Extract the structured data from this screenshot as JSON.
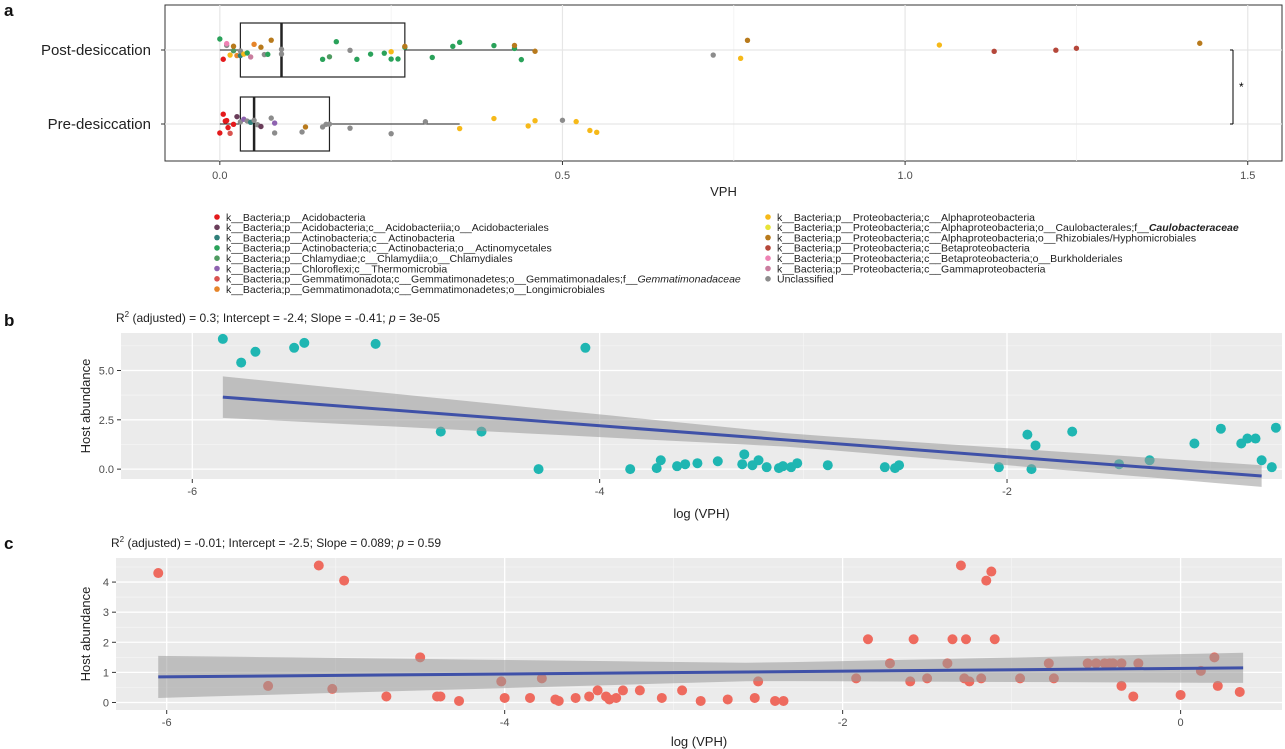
{
  "panel_labels": [
    "a",
    "b",
    "c"
  ],
  "chart_data": [
    {
      "type": "scatter",
      "subtype": "horizontal-boxplot-jitter",
      "panel": "a",
      "xlabel": "VPH",
      "xlim": [
        -0.08,
        1.55
      ],
      "xticks": [
        0.0,
        0.5,
        1.0,
        1.5
      ],
      "xtick_labels": [
        "0.0",
        "0.5",
        "1.0",
        "1.5"
      ],
      "grid": true,
      "legend_position": "bottom",
      "significance_label": "*",
      "groups": [
        {
          "name": "Post-desiccation",
          "box": {
            "min": 0.0,
            "q1": 0.03,
            "median": 0.09,
            "q3": 0.27,
            "max": 0.46
          }
        },
        {
          "name": "Pre-desiccation",
          "box": {
            "min": 0.0,
            "q1": 0.03,
            "median": 0.05,
            "q3": 0.16,
            "max": 0.35
          }
        }
      ],
      "legend": [
        {
          "label": "k__Bacteria;p__Acidobacteria",
          "color": "#e41a1c"
        },
        {
          "label": "k__Bacteria;p__Acidobacteria;c__Acidobacteriia;o__Acidobacteriales",
          "color": "#6a3d5a"
        },
        {
          "label": "k__Bacteria;p__Actinobacteria;c__Actinobacteria",
          "color": "#2f7f7a"
        },
        {
          "label": "k__Bacteria;p__Actinobacteria;c__Actinobacteria;o__Actinomycetales",
          "color": "#2aa25a"
        },
        {
          "label": "k__Bacteria;p__Chlamydiae;c__Chlamydiia;o__Chlamydiales",
          "color": "#4e9a60"
        },
        {
          "label": "k__Bacteria;p__Chloroflexi;c__Thermomicrobia",
          "color": "#8e62b0"
        },
        {
          "label": "k__Bacteria;p__Gemmatimonadota;c__Gemmatimonadetes;o__Gemmatimonadales;f__Gemmatimonadaceae",
          "color": "#d9534f"
        },
        {
          "label": "k__Bacteria;p__Gemmatimonadota;c__Gemmatimonadetes;o__Longimicrobiales",
          "color": "#e6852a"
        },
        {
          "label": "k__Bacteria;p__Proteobacteria;c__Alphaproteobacteria",
          "color": "#f6b919"
        },
        {
          "label": "k__Bacteria;p__Proteobacteria;c__Alphaproteobacteria;o__Caulobacterales;f__Caulobacteraceae",
          "color": "#e8e337"
        },
        {
          "label": "k__Bacteria;p__Proteobacteria;c__Alphaproteobacteria;o__Rhizobiales/Hyphomicrobiales",
          "color": "#b87a1c"
        },
        {
          "label": "k__Bacteria;p__Proteobacteria;c__Betaproteobacteria",
          "color": "#b5473a"
        },
        {
          "label": "k__Bacteria;p__Proteobacteria;c__Betaproteobacteria;o__Burkholderiales",
          "color": "#ee82b4"
        },
        {
          "label": "k__Bacteria;p__Proteobacteria;c__Gammaproteobacteria",
          "color": "#c97d9e"
        },
        {
          "label": "Unclassified",
          "color": "#8c8c8c"
        }
      ],
      "points": [
        {
          "g": 0,
          "x": 0.0,
          "c": 3
        },
        {
          "g": 0,
          "x": 0.005,
          "c": 0
        },
        {
          "g": 0,
          "x": 0.01,
          "c": 14
        },
        {
          "g": 0,
          "x": 0.01,
          "c": 12
        },
        {
          "g": 0,
          "x": 0.015,
          "c": 8
        },
        {
          "g": 0,
          "x": 0.02,
          "c": 4
        },
        {
          "g": 0,
          "x": 0.02,
          "c": 10
        },
        {
          "g": 0,
          "x": 0.025,
          "c": 7
        },
        {
          "g": 0,
          "x": 0.03,
          "c": 2
        },
        {
          "g": 0,
          "x": 0.03,
          "c": 14
        },
        {
          "g": 0,
          "x": 0.035,
          "c": 8
        },
        {
          "g": 0,
          "x": 0.04,
          "c": 3
        },
        {
          "g": 0,
          "x": 0.045,
          "c": 13
        },
        {
          "g": 0,
          "x": 0.05,
          "c": 7
        },
        {
          "g": 0,
          "x": 0.06,
          "c": 10
        },
        {
          "g": 0,
          "x": 0.065,
          "c": 14
        },
        {
          "g": 0,
          "x": 0.07,
          "c": 3
        },
        {
          "g": 0,
          "x": 0.075,
          "c": 10
        },
        {
          "g": 0,
          "x": 0.09,
          "c": 14
        },
        {
          "g": 0,
          "x": 0.09,
          "c": 14
        },
        {
          "g": 0,
          "x": 0.15,
          "c": 3
        },
        {
          "g": 0,
          "x": 0.16,
          "c": 4
        },
        {
          "g": 0,
          "x": 0.17,
          "c": 3
        },
        {
          "g": 0,
          "x": 0.19,
          "c": 14
        },
        {
          "g": 0,
          "x": 0.2,
          "c": 3
        },
        {
          "g": 0,
          "x": 0.22,
          "c": 3
        },
        {
          "g": 0,
          "x": 0.24,
          "c": 3
        },
        {
          "g": 0,
          "x": 0.25,
          "c": 8
        },
        {
          "g": 0,
          "x": 0.25,
          "c": 3
        },
        {
          "g": 0,
          "x": 0.26,
          "c": 3
        },
        {
          "g": 0,
          "x": 0.27,
          "c": 3
        },
        {
          "g": 0,
          "x": 0.27,
          "c": 10
        },
        {
          "g": 0,
          "x": 0.31,
          "c": 3
        },
        {
          "g": 0,
          "x": 0.34,
          "c": 3
        },
        {
          "g": 0,
          "x": 0.35,
          "c": 3
        },
        {
          "g": 0,
          "x": 0.4,
          "c": 3
        },
        {
          "g": 0,
          "x": 0.43,
          "c": 3
        },
        {
          "g": 0,
          "x": 0.43,
          "c": 10
        },
        {
          "g": 0,
          "x": 0.44,
          "c": 3
        },
        {
          "g": 0,
          "x": 0.46,
          "c": 10
        },
        {
          "g": 0,
          "x": 0.72,
          "c": 14
        },
        {
          "g": 0,
          "x": 0.76,
          "c": 8
        },
        {
          "g": 0,
          "x": 0.77,
          "c": 10
        },
        {
          "g": 0,
          "x": 1.05,
          "c": 8
        },
        {
          "g": 0,
          "x": 1.13,
          "c": 11
        },
        {
          "g": 0,
          "x": 1.22,
          "c": 11
        },
        {
          "g": 0,
          "x": 1.25,
          "c": 11
        },
        {
          "g": 0,
          "x": 1.43,
          "c": 10
        },
        {
          "g": 1,
          "x": 0.0,
          "c": 0
        },
        {
          "g": 1,
          "x": 0.005,
          "c": 0
        },
        {
          "g": 1,
          "x": 0.008,
          "c": 0
        },
        {
          "g": 1,
          "x": 0.01,
          "c": 0
        },
        {
          "g": 1,
          "x": 0.012,
          "c": 0
        },
        {
          "g": 1,
          "x": 0.015,
          "c": 6
        },
        {
          "g": 1,
          "x": 0.02,
          "c": 0
        },
        {
          "g": 1,
          "x": 0.025,
          "c": 1
        },
        {
          "g": 1,
          "x": 0.03,
          "c": 14
        },
        {
          "g": 1,
          "x": 0.035,
          "c": 5
        },
        {
          "g": 1,
          "x": 0.04,
          "c": 14
        },
        {
          "g": 1,
          "x": 0.045,
          "c": 2
        },
        {
          "g": 1,
          "x": 0.05,
          "c": 14
        },
        {
          "g": 1,
          "x": 0.055,
          "c": 14
        },
        {
          "g": 1,
          "x": 0.06,
          "c": 1
        },
        {
          "g": 1,
          "x": 0.075,
          "c": 14
        },
        {
          "g": 1,
          "x": 0.08,
          "c": 14
        },
        {
          "g": 1,
          "x": 0.08,
          "c": 5
        },
        {
          "g": 1,
          "x": 0.12,
          "c": 14
        },
        {
          "g": 1,
          "x": 0.125,
          "c": 10
        },
        {
          "g": 1,
          "x": 0.15,
          "c": 14
        },
        {
          "g": 1,
          "x": 0.155,
          "c": 14
        },
        {
          "g": 1,
          "x": 0.16,
          "c": 14
        },
        {
          "g": 1,
          "x": 0.19,
          "c": 14
        },
        {
          "g": 1,
          "x": 0.25,
          "c": 14
        },
        {
          "g": 1,
          "x": 0.3,
          "c": 14
        },
        {
          "g": 1,
          "x": 0.35,
          "c": 8
        },
        {
          "g": 1,
          "x": 0.4,
          "c": 8
        },
        {
          "g": 1,
          "x": 0.45,
          "c": 8
        },
        {
          "g": 1,
          "x": 0.46,
          "c": 8
        },
        {
          "g": 1,
          "x": 0.5,
          "c": 14
        },
        {
          "g": 1,
          "x": 0.52,
          "c": 8
        },
        {
          "g": 1,
          "x": 0.54,
          "c": 8
        },
        {
          "g": 1,
          "x": 0.55,
          "c": 8
        }
      ]
    },
    {
      "type": "scatter",
      "panel": "b",
      "title": "R² (adjusted) = 0.3; Intercept = -2.4; Slope = -0.41; p = 3e-05",
      "title_parts": [
        "R",
        "2",
        " (adjusted) = 0.3; Intercept = -2.4; Slope = -0.41; ",
        "p",
        " = 3e-05"
      ],
      "xlabel": "log (VPH)",
      "ylabel": "Host abundance",
      "xlim": [
        -6.35,
        -0.65
      ],
      "ylim": [
        -0.5,
        6.9
      ],
      "xticks": [
        -6,
        -4,
        -2
      ],
      "xtick_labels": [
        "-6",
        "-4",
        "-2"
      ],
      "yticks": [
        0.0,
        2.5,
        5.0
      ],
      "ytick_labels": [
        "0.0",
        "2.5",
        "5.0"
      ],
      "grid": true,
      "point_color": "#1fb6b2",
      "fit": {
        "color": "#3f51a8",
        "x": [
          -5.85,
          -0.75
        ],
        "y": [
          3.65,
          -0.35
        ],
        "ci_width": [
          1.05,
          0.55
        ]
      },
      "points": [
        [
          -5.85,
          6.6
        ],
        [
          -5.76,
          5.4
        ],
        [
          -5.69,
          5.95
        ],
        [
          -5.5,
          6.15
        ],
        [
          -5.45,
          6.4
        ],
        [
          -5.1,
          6.35
        ],
        [
          -4.78,
          1.9
        ],
        [
          -4.58,
          1.9
        ],
        [
          -4.3,
          0.0
        ],
        [
          -4.07,
          6.15
        ],
        [
          -3.85,
          0.0
        ],
        [
          -3.72,
          0.05
        ],
        [
          -3.7,
          0.45
        ],
        [
          -3.62,
          0.15
        ],
        [
          -3.58,
          0.25
        ],
        [
          -3.52,
          0.3
        ],
        [
          -3.42,
          0.4
        ],
        [
          -3.3,
          0.25
        ],
        [
          -3.29,
          0.75
        ],
        [
          -3.25,
          0.2
        ],
        [
          -3.22,
          0.45
        ],
        [
          -3.18,
          0.1
        ],
        [
          -3.12,
          0.05
        ],
        [
          -3.1,
          0.15
        ],
        [
          -3.06,
          0.1
        ],
        [
          -3.03,
          0.3
        ],
        [
          -2.88,
          0.2
        ],
        [
          -2.6,
          0.1
        ],
        [
          -2.55,
          0.05
        ],
        [
          -2.53,
          0.2
        ],
        [
          -2.04,
          0.1
        ],
        [
          -1.9,
          1.75
        ],
        [
          -1.88,
          0.0
        ],
        [
          -1.86,
          1.2
        ],
        [
          -1.68,
          1.9
        ],
        [
          -1.45,
          0.25
        ],
        [
          -1.3,
          0.45
        ],
        [
          -1.08,
          1.3
        ],
        [
          -0.95,
          2.05
        ],
        [
          -0.85,
          1.3
        ],
        [
          -0.82,
          1.55
        ],
        [
          -0.78,
          1.55
        ],
        [
          -0.75,
          0.45
        ],
        [
          -0.7,
          0.1
        ],
        [
          -0.68,
          2.1
        ]
      ]
    },
    {
      "type": "scatter",
      "panel": "c",
      "title": "R² (adjusted) = -0.01; Intercept = -2.5; Slope = 0.089; p = 0.59",
      "title_parts": [
        "R",
        "2",
        " (adjusted) = -0.01; Intercept = -2.5; Slope = 0.089; ",
        "p",
        " = 0.59"
      ],
      "xlabel": "log (VPH)",
      "ylabel": "Host abundance",
      "xlim": [
        -6.3,
        0.6
      ],
      "ylim": [
        -0.25,
        4.8
      ],
      "xticks": [
        -6,
        -4,
        -2,
        0
      ],
      "xtick_labels": [
        "-6",
        "-4",
        "-2",
        "0"
      ],
      "yticks": [
        0,
        1,
        2,
        3,
        4
      ],
      "ytick_labels": [
        "0",
        "1",
        "2",
        "3",
        "4"
      ],
      "grid": true,
      "point_color": "#ee6a5e",
      "fit": {
        "color": "#3f51a8",
        "x": [
          -6.05,
          0.37
        ],
        "y": [
          0.85,
          1.15
        ],
        "ci_width": [
          0.7,
          0.5
        ]
      },
      "points": [
        [
          -6.05,
          4.3
        ],
        [
          -5.4,
          0.55
        ],
        [
          -5.1,
          4.55
        ],
        [
          -5.02,
          0.45
        ],
        [
          -4.95,
          4.05
        ],
        [
          -4.7,
          0.2
        ],
        [
          -4.5,
          1.5
        ],
        [
          -4.4,
          0.2
        ],
        [
          -4.38,
          0.2
        ],
        [
          -4.27,
          0.05
        ],
        [
          -4.02,
          0.7
        ],
        [
          -4.0,
          0.15
        ],
        [
          -3.85,
          0.15
        ],
        [
          -3.78,
          0.8
        ],
        [
          -3.7,
          0.1
        ],
        [
          -3.68,
          0.05
        ],
        [
          -3.58,
          0.15
        ],
        [
          -3.5,
          0.2
        ],
        [
          -3.45,
          0.4
        ],
        [
          -3.4,
          0.2
        ],
        [
          -3.38,
          0.1
        ],
        [
          -3.34,
          0.15
        ],
        [
          -3.3,
          0.4
        ],
        [
          -3.2,
          0.4
        ],
        [
          -3.07,
          0.15
        ],
        [
          -2.95,
          0.4
        ],
        [
          -2.84,
          0.05
        ],
        [
          -2.68,
          0.1
        ],
        [
          -2.52,
          0.15
        ],
        [
          -2.5,
          0.7
        ],
        [
          -2.4,
          0.05
        ],
        [
          -2.35,
          0.05
        ],
        [
          -1.92,
          0.8
        ],
        [
          -1.85,
          2.1
        ],
        [
          -1.72,
          1.3
        ],
        [
          -1.6,
          0.7
        ],
        [
          -1.58,
          2.1
        ],
        [
          -1.5,
          0.8
        ],
        [
          -1.38,
          1.3
        ],
        [
          -1.35,
          2.1
        ],
        [
          -1.3,
          4.55
        ],
        [
          -1.28,
          0.8
        ],
        [
          -1.27,
          2.1
        ],
        [
          -1.25,
          0.7
        ],
        [
          -1.15,
          4.05
        ],
        [
          -1.12,
          4.35
        ],
        [
          -1.1,
          2.1
        ],
        [
          -1.18,
          0.8
        ],
        [
          -0.95,
          0.8
        ],
        [
          -0.78,
          1.3
        ],
        [
          -0.75,
          0.8
        ],
        [
          -0.55,
          1.3
        ],
        [
          -0.5,
          1.3
        ],
        [
          -0.45,
          1.3
        ],
        [
          -0.4,
          1.3
        ],
        [
          -0.35,
          1.3
        ],
        [
          -0.42,
          1.3
        ],
        [
          -0.35,
          0.55
        ],
        [
          -0.28,
          0.2
        ],
        [
          -0.25,
          1.3
        ],
        [
          0.0,
          0.25
        ],
        [
          0.12,
          1.05
        ],
        [
          0.2,
          1.5
        ],
        [
          0.22,
          0.55
        ],
        [
          0.35,
          0.35
        ]
      ]
    }
  ]
}
